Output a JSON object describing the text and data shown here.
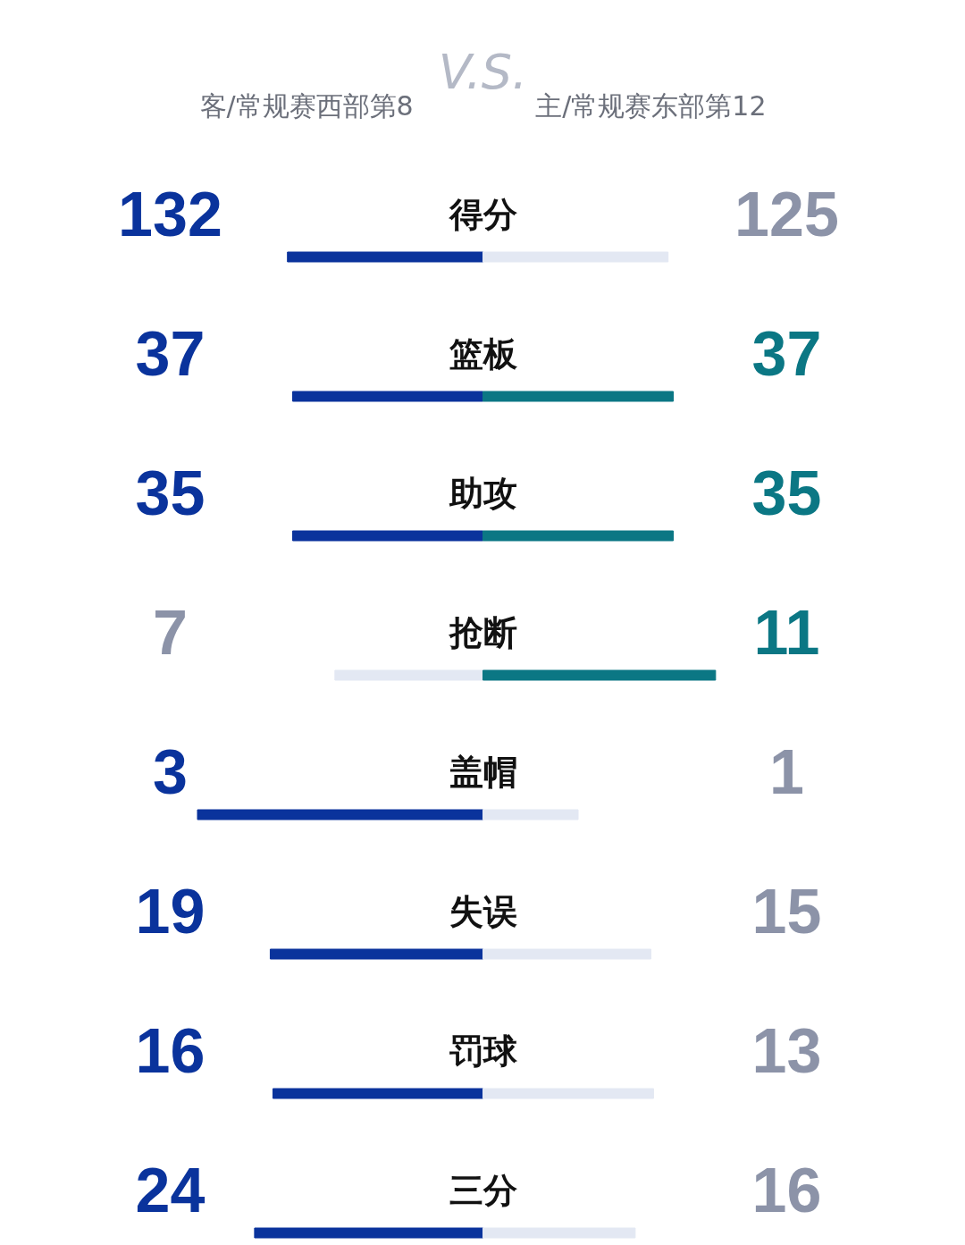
{
  "chart_data": [
    {
      "type": "bar",
      "orientation": "horizontal",
      "stacked": true,
      "title": "得分",
      "categories": [
        null
      ],
      "data_labels": true,
      "annotations": [
        "客/常规赛西部第8",
        "V.S.",
        "主/常规赛东部第12"
      ],
      "series": [
        {
          "color": "#0a339c",
          "values": [
            132
          ]
        },
        {
          "color": "#e3e8f3",
          "values": [
            125
          ]
        }
      ]
    },
    {
      "type": "bar",
      "orientation": "horizontal",
      "stacked": true,
      "title": "篮板",
      "categories": [
        null
      ],
      "data_labels": true,
      "series": [
        {
          "color": "#0a339c",
          "values": [
            37
          ]
        },
        {
          "color": "#0b7784",
          "values": [
            37
          ]
        }
      ]
    },
    {
      "type": "bar",
      "orientation": "horizontal",
      "stacked": true,
      "title": "助攻",
      "categories": [
        null
      ],
      "data_labels": true,
      "series": [
        {
          "color": "#0a339c",
          "values": [
            35
          ]
        },
        {
          "color": "#0b7784",
          "values": [
            35
          ]
        }
      ]
    },
    {
      "type": "bar",
      "orientation": "horizontal",
      "stacked": true,
      "title": "抢断",
      "categories": [
        null
      ],
      "data_labels": true,
      "series": [
        {
          "color": "#e3e8f3",
          "values": [
            7
          ]
        },
        {
          "color": "#0b7784",
          "values": [
            11
          ]
        }
      ]
    },
    {
      "type": "bar",
      "orientation": "horizontal",
      "stacked": true,
      "title": "盖帽",
      "categories": [
        null
      ],
      "data_labels": true,
      "series": [
        {
          "color": "#0a339c",
          "values": [
            3
          ]
        },
        {
          "color": "#e3e8f3",
          "values": [
            1
          ]
        }
      ]
    },
    {
      "type": "bar",
      "orientation": "horizontal",
      "stacked": true,
      "title": "失误",
      "categories": [
        null
      ],
      "data_labels": true,
      "series": [
        {
          "color": "#0a339c",
          "values": [
            19
          ]
        },
        {
          "color": "#e3e8f3",
          "values": [
            15
          ]
        }
      ]
    },
    {
      "type": "bar",
      "orientation": "horizontal",
      "stacked": true,
      "title": "罚球",
      "categories": [
        null
      ],
      "data_labels": true,
      "series": [
        {
          "color": "#0a339c",
          "values": [
            16
          ]
        },
        {
          "color": "#e3e8f3",
          "values": [
            13
          ]
        }
      ]
    },
    {
      "type": "bar",
      "orientation": "horizontal",
      "stacked": true,
      "title": "三分",
      "categories": [
        null
      ],
      "data_labels": true,
      "series": [
        {
          "color": "#0a339c",
          "values": [
            24
          ]
        },
        {
          "color": "#e3e8f3",
          "values": [
            16
          ]
        }
      ]
    }
  ]
}
